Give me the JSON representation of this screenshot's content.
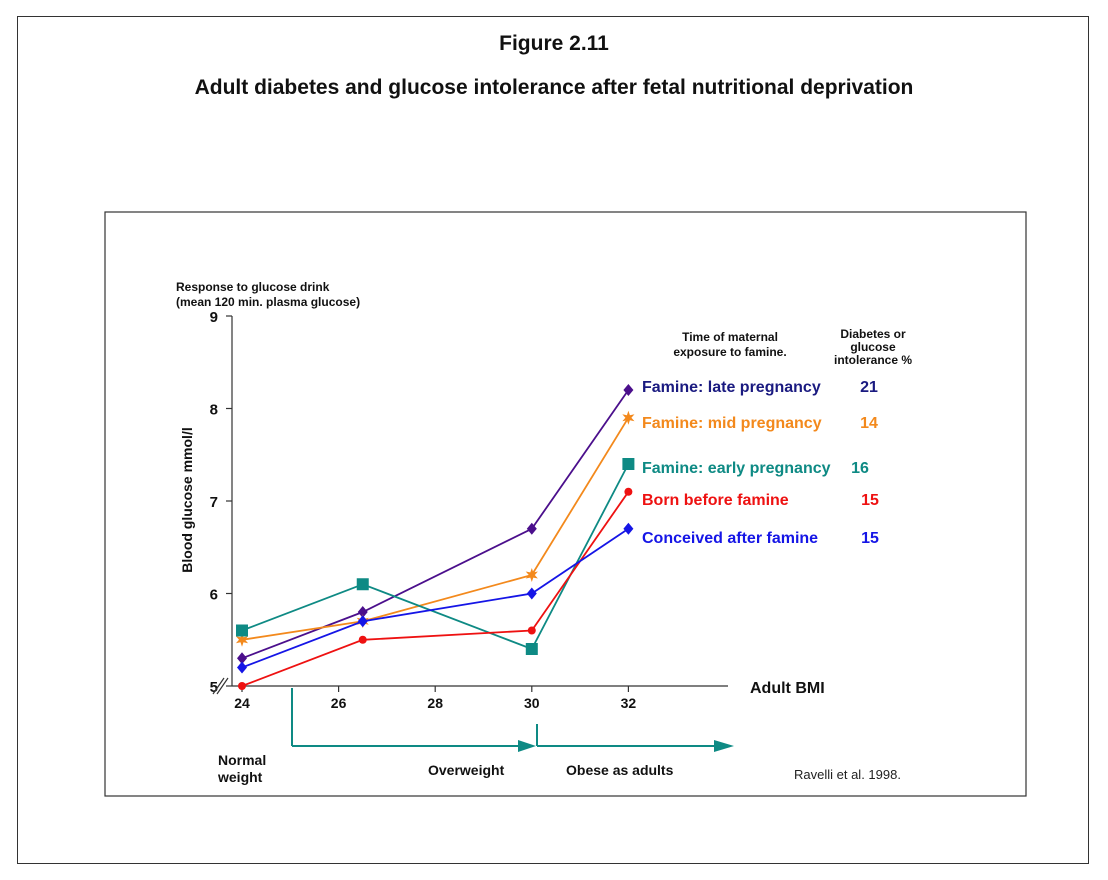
{
  "figure": {
    "number": "Figure 2.11",
    "title": "Adult diabetes and glucose intolerance after fetal nutritional deprivation"
  },
  "chart_data": {
    "type": "line",
    "title": "",
    "ylabel_top": [
      "Response to glucose drink",
      "(mean 120 min. plasma glucose)"
    ],
    "ylabel": "Blood glucose mmol/l",
    "xlabel": "Adult BMI",
    "ylim": [
      5,
      9
    ],
    "xlim": [
      24,
      34
    ],
    "yticks": [
      "5",
      "6",
      "7",
      "8",
      "9"
    ],
    "xticks": [
      "24",
      "26",
      "28",
      "30",
      "32"
    ],
    "x": [
      24,
      26.5,
      30,
      32
    ],
    "grid": false,
    "legend_header": [
      "Time of maternal",
      "exposure to famine."
    ],
    "percent_header": [
      "Diabetes or",
      "glucose",
      "intolerance %"
    ],
    "series": [
      {
        "name": "Famine: late pregnancy",
        "percent": "21",
        "color": "#4b0f8c",
        "label_color": "#1a1a80",
        "marker": "diamond",
        "values": [
          5.3,
          5.8,
          6.7,
          8.2
        ]
      },
      {
        "name": "Famine: mid pregnancy",
        "percent": "14",
        "color": "#f3891c",
        "label_color": "#f3891c",
        "marker": "star",
        "values": [
          5.5,
          5.7,
          6.2,
          7.9
        ]
      },
      {
        "name": "Famine: early pregnancy",
        "percent": "16",
        "color": "#0e8a84",
        "label_color": "#0e8a84",
        "marker": "square",
        "values": [
          5.6,
          6.1,
          5.4,
          7.4
        ]
      },
      {
        "name": "Born before famine",
        "percent": "15",
        "color": "#ee1111",
        "label_color": "#ee1111",
        "marker": "circle",
        "values": [
          5.0,
          5.5,
          5.6,
          7.1
        ]
      },
      {
        "name": "Conceived after famine",
        "percent": "15",
        "color": "#1515e6",
        "label_color": "#1515e6",
        "marker": "diamond",
        "values": [
          5.2,
          5.7,
          6.0,
          6.7
        ]
      }
    ],
    "categories_below_axis": [
      {
        "label_lines": [
          "Normal",
          "weight"
        ]
      },
      {
        "label_lines": [
          "Overweight"
        ]
      },
      {
        "label_lines": [
          "Obese as adults"
        ]
      }
    ],
    "arrow_color": "#0e8a84",
    "source": "Ravelli et al. 1998."
  }
}
